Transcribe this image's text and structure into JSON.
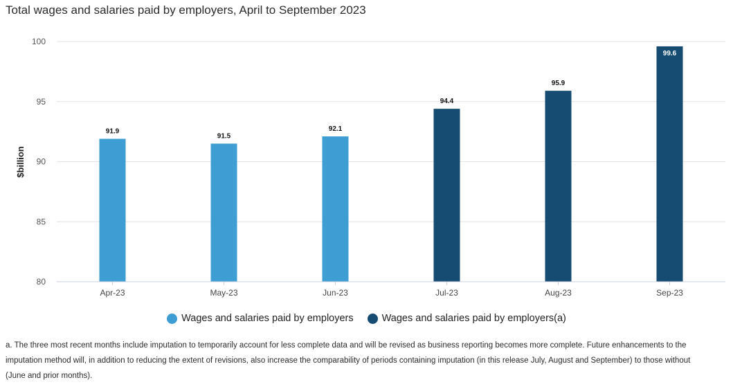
{
  "title": "Total wages and salaries paid by employers, April to September 2023",
  "colors": {
    "series1": "#3e9ed4",
    "series2": "#164b72",
    "grid": "#e3e3e3",
    "axis": "#c8cfdc"
  },
  "legend": [
    {
      "label": "Wages and salaries paid by employers",
      "color": "#3e9ed4"
    },
    {
      "label": "Wages and salaries paid by employers(a)",
      "color": "#164b72"
    }
  ],
  "footnote": "a. The three most recent months include imputation to temporarily account for less complete data and will be revised as business reporting becomes more complete. Future enhancements to the imputation method will, in addition to reducing the extent of revisions, also increase the comparability of periods containing imputation (in this release July, August and September) to those without (June and prior months).",
  "chart_data": {
    "type": "bar",
    "title": "Total wages and salaries paid by employers, April to September 2023",
    "xlabel": "",
    "ylabel": "$billion",
    "ylim": [
      80,
      100
    ],
    "yticks": [
      80,
      85,
      90,
      95,
      100
    ],
    "grid": true,
    "legend_position": "bottom",
    "categories": [
      "Apr-23",
      "May-23",
      "Jun-23",
      "Jul-23",
      "Aug-23",
      "Sep-23"
    ],
    "series": [
      {
        "name": "Wages and salaries paid by employers",
        "color": "#3e9ed4",
        "values": [
          91.9,
          91.5,
          92.1,
          null,
          null,
          null
        ]
      },
      {
        "name": "Wages and salaries paid by employers(a)",
        "color": "#164b72",
        "values": [
          null,
          null,
          null,
          94.4,
          95.9,
          99.6
        ]
      }
    ]
  }
}
